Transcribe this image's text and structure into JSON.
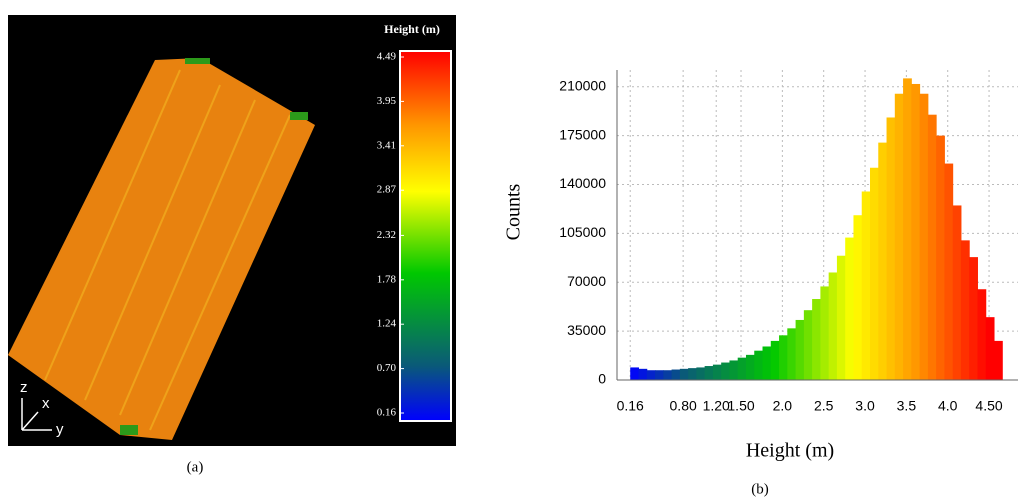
{
  "chart_data": [
    {
      "type": "heightmap",
      "colorbar_title": "Height (m)",
      "clim": [
        0.16,
        4.49
      ],
      "colorbar_ticks": [
        4.49,
        3.95,
        3.41,
        2.87,
        2.32,
        1.78,
        1.24,
        {
          "value": 0.7,
          "label": "0.70"
        },
        0.16
      ],
      "axis_labels": [
        "z",
        "x",
        "y"
      ],
      "caption": "(a)"
    },
    {
      "type": "histogram",
      "xlabel": "Height (m)",
      "ylabel": "Counts",
      "caption": "(b)",
      "bins": [
        0.16,
        0.26,
        0.36,
        0.46,
        0.56,
        0.66,
        0.76,
        0.86,
        0.96,
        1.06,
        1.16,
        1.26,
        1.36,
        1.46,
        1.56,
        1.66,
        1.76,
        1.86,
        1.96,
        2.06,
        2.16,
        2.26,
        2.36,
        2.46,
        2.56,
        2.66,
        2.76,
        2.86,
        2.96,
        3.06,
        3.16,
        3.26,
        3.36,
        3.46,
        3.56,
        3.66,
        3.76,
        3.86,
        3.96,
        4.06,
        4.16,
        4.26,
        4.36,
        4.46,
        4.56,
        4.66
      ],
      "values": [
        9000,
        8000,
        7000,
        7000,
        7000,
        7500,
        8000,
        8500,
        9000,
        10000,
        11000,
        12500,
        14000,
        16000,
        18000,
        21000,
        24000,
        28000,
        32000,
        37000,
        43000,
        50000,
        58000,
        67000,
        77000,
        89000,
        102000,
        118000,
        135000,
        152000,
        170000,
        188000,
        205000,
        216000,
        212000,
        205000,
        190000,
        175000,
        155000,
        125000,
        100000,
        88000,
        65000,
        45000,
        28000
      ],
      "xlim": [
        0,
        4.85
      ],
      "ylim": [
        0,
        222000
      ],
      "xticks": [
        0.16,
        {
          "value": 0.8,
          "label": "0.80"
        },
        {
          "value": 1.2,
          "label": "1.20"
        },
        {
          "value": 1.5,
          "label": "1.50"
        },
        {
          "value": 2,
          "label": "2.0"
        },
        2.5,
        {
          "value": 3,
          "label": "3.0"
        },
        3.5,
        {
          "value": 4,
          "label": "4.0"
        },
        {
          "value": 4.5,
          "label": "4.50"
        }
      ],
      "yticks": [
        0,
        35000,
        70000,
        105000,
        140000,
        175000,
        210000
      ],
      "grid": true
    }
  ]
}
